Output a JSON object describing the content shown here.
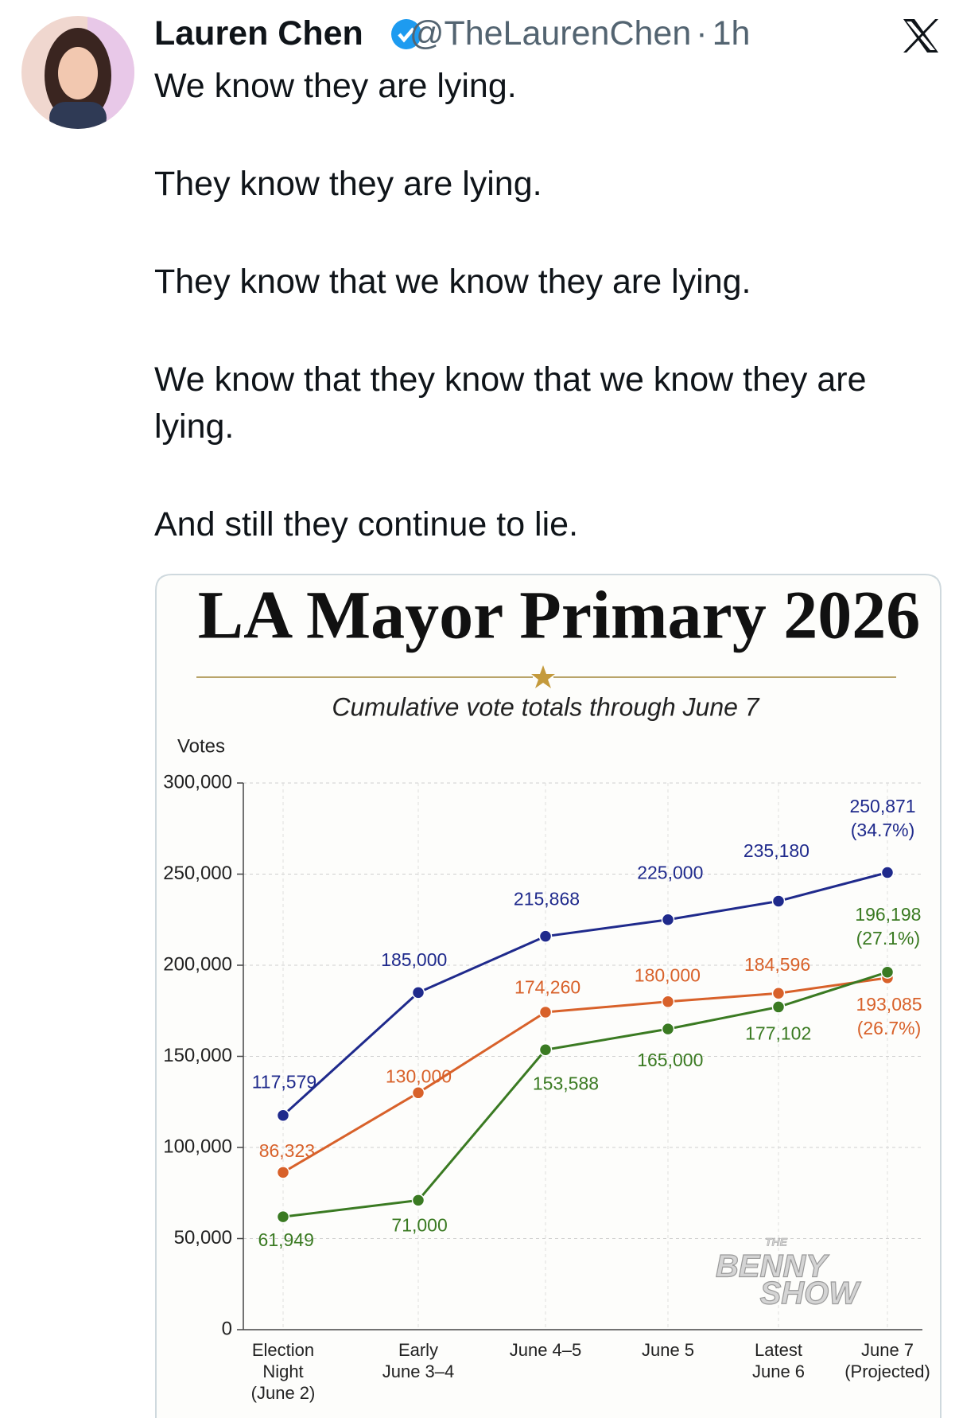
{
  "tweet": {
    "author": "Lauren Chen",
    "handle": "@TheLaurenChen",
    "separator": "·",
    "time": "1h",
    "paragraphs": [
      "We know they are lying.",
      "They know they are lying.",
      "They know that we know they are lying.",
      "We know that they know that we know they are lying.",
      "And still they continue to lie."
    ]
  },
  "chart_data": {
    "type": "line",
    "title": "LA Mayor Primary 2026",
    "subtitle": "Cumulative vote totals through June 7",
    "y_label": "Votes",
    "watermark": [
      "THE",
      "BENNY",
      "SHOW"
    ],
    "categories": [
      "Election\nNight\n(June 2)",
      "Early\nJune 3–4",
      "June 4–5",
      "June 5",
      "Latest\nJune 6",
      "June 7\n(Projected)"
    ],
    "series": [
      {
        "color": "#1f2a8c",
        "values": [
          117579,
          185000,
          215868,
          225000,
          235180,
          250871
        ],
        "value_labels": [
          "117,579",
          "185,000",
          "215,868",
          "225,000",
          "235,180",
          "250,871\n(34.7%)"
        ]
      },
      {
        "color": "#d8612a",
        "values": [
          86323,
          130000,
          174260,
          180000,
          184596,
          193085
        ],
        "value_labels": [
          "86,323",
          "130,000",
          "174,260",
          "180,000",
          "184,596",
          "193,085\n(26.7%)"
        ]
      },
      {
        "color": "#3a7a22",
        "values": [
          61949,
          71000,
          153588,
          165000,
          177102,
          196198
        ],
        "value_labels": [
          "61,949",
          "71,000",
          "153,588",
          "165,000",
          "177,102",
          "196,198\n(27.1%)"
        ]
      }
    ],
    "ylim": [
      0,
      300000
    ],
    "yticks": [
      0,
      {
        "value": 50000,
        "label": "50,000"
      },
      {
        "value": 100000,
        "label": "100,000"
      },
      {
        "value": 150000,
        "label": "150,000"
      },
      {
        "value": 200000,
        "label": "200,000"
      },
      {
        "value": 250000,
        "label": "250,000"
      },
      {
        "value": 300000,
        "label": "300,000"
      }
    ],
    "grid": true
  }
}
